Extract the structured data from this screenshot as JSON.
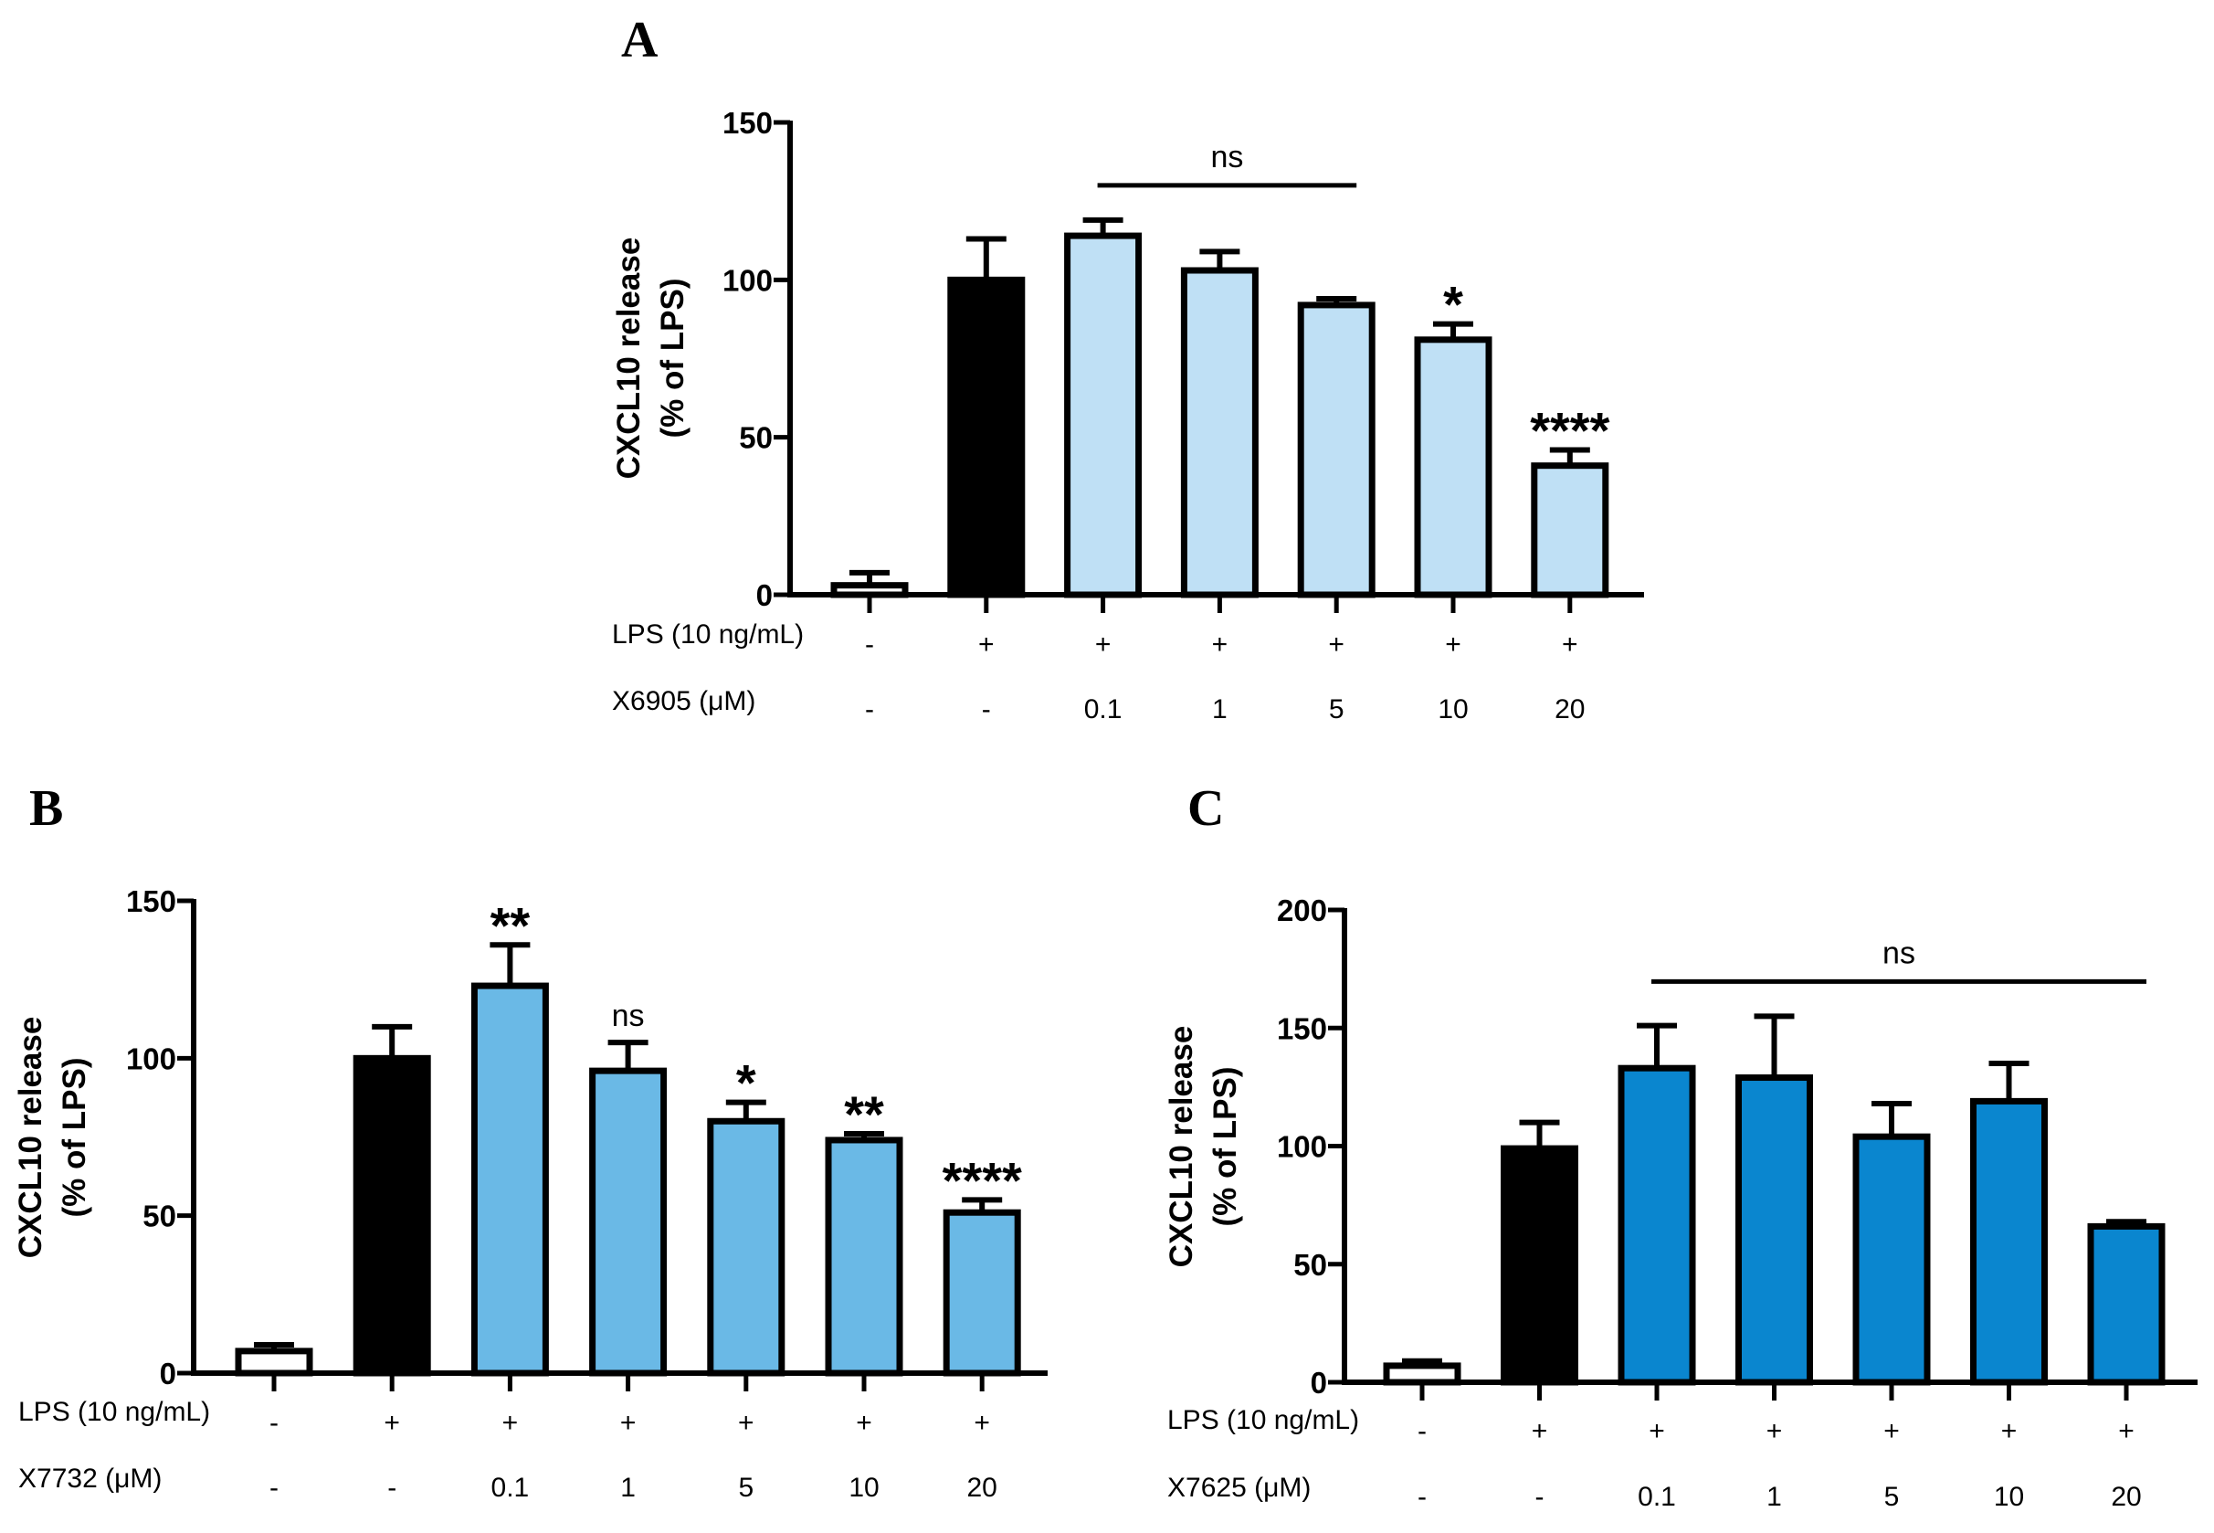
{
  "chart_data": [
    {
      "panel": "A",
      "type": "bar",
      "ylabel": [
        "CXCL10 release",
        "(% of LPS)"
      ],
      "ylim": [
        0,
        150
      ],
      "yticks": [
        0,
        50,
        100,
        150
      ],
      "bar_colors": [
        "#ffffff",
        "#000000",
        "#bfe0f5",
        "#bfe0f5",
        "#bfe0f5",
        "#bfe0f5",
        "#bfe0f5"
      ],
      "values": [
        3,
        100,
        114,
        103,
        92,
        81,
        41
      ],
      "errors": [
        4,
        13,
        5,
        6,
        2,
        5,
        5
      ],
      "rows": [
        {
          "label": "LPS (10 ng/mL)",
          "values": [
            "-",
            "+",
            "+",
            "+",
            "+",
            "+",
            "+"
          ]
        },
        {
          "label": "X6905 (μM)",
          "values": [
            "-",
            "-",
            "0.1",
            "1",
            "5",
            "10",
            "20"
          ]
        }
      ],
      "annotations": [
        {
          "text": "*",
          "bar": 5
        },
        {
          "text": "****",
          "bar": 6
        }
      ],
      "brackets": [
        {
          "text": "ns",
          "from": 2,
          "to": 4
        }
      ]
    },
    {
      "panel": "B",
      "type": "bar",
      "ylabel": [
        "CXCL10 release",
        "(% of LPS)"
      ],
      "ylim": [
        0,
        150
      ],
      "yticks": [
        0,
        50,
        100,
        150
      ],
      "bar_colors": [
        "#ffffff",
        "#000000",
        "#6ab9e6",
        "#6ab9e6",
        "#6ab9e6",
        "#6ab9e6",
        "#6ab9e6"
      ],
      "values": [
        7,
        100,
        123,
        96,
        80,
        74,
        51
      ],
      "errors": [
        2,
        10,
        13,
        9,
        6,
        2,
        4
      ],
      "rows": [
        {
          "label": "LPS (10 ng/mL)",
          "values": [
            "-",
            "+",
            "+",
            "+",
            "+",
            "+",
            "+"
          ]
        },
        {
          "label": "X7732 (μM)",
          "values": [
            "-",
            "-",
            "0.1",
            "1",
            "5",
            "10",
            "20"
          ]
        }
      ],
      "annotations": [
        {
          "text": "**",
          "bar": 2
        },
        {
          "text": "ns",
          "bar": 3
        },
        {
          "text": "*",
          "bar": 4
        },
        {
          "text": "**",
          "bar": 5
        },
        {
          "text": "****",
          "bar": 6
        }
      ],
      "brackets": []
    },
    {
      "panel": "C",
      "type": "bar",
      "ylabel": [
        "CXCL10 release",
        "(% of LPS)"
      ],
      "ylim": [
        0,
        200
      ],
      "yticks": [
        0,
        50,
        100,
        150,
        200
      ],
      "bar_colors": [
        "#ffffff",
        "#000000",
        "#0a86cf",
        "#0a86cf",
        "#0a86cf",
        "#0a86cf",
        "#0a86cf"
      ],
      "values": [
        7,
        99,
        133,
        129,
        104,
        119,
        66
      ],
      "errors": [
        2,
        11,
        18,
        26,
        14,
        16,
        2
      ],
      "rows": [
        {
          "label": "LPS (10 ng/mL)",
          "values": [
            "-",
            "+",
            "+",
            "+",
            "+",
            "+",
            "+"
          ]
        },
        {
          "label": "X7625 (μM)",
          "values": [
            "-",
            "-",
            "0.1",
            "1",
            "5",
            "10",
            "20"
          ]
        }
      ],
      "annotations": [],
      "brackets": [
        {
          "text": "ns",
          "from": 2,
          "to": 6
        }
      ]
    }
  ]
}
